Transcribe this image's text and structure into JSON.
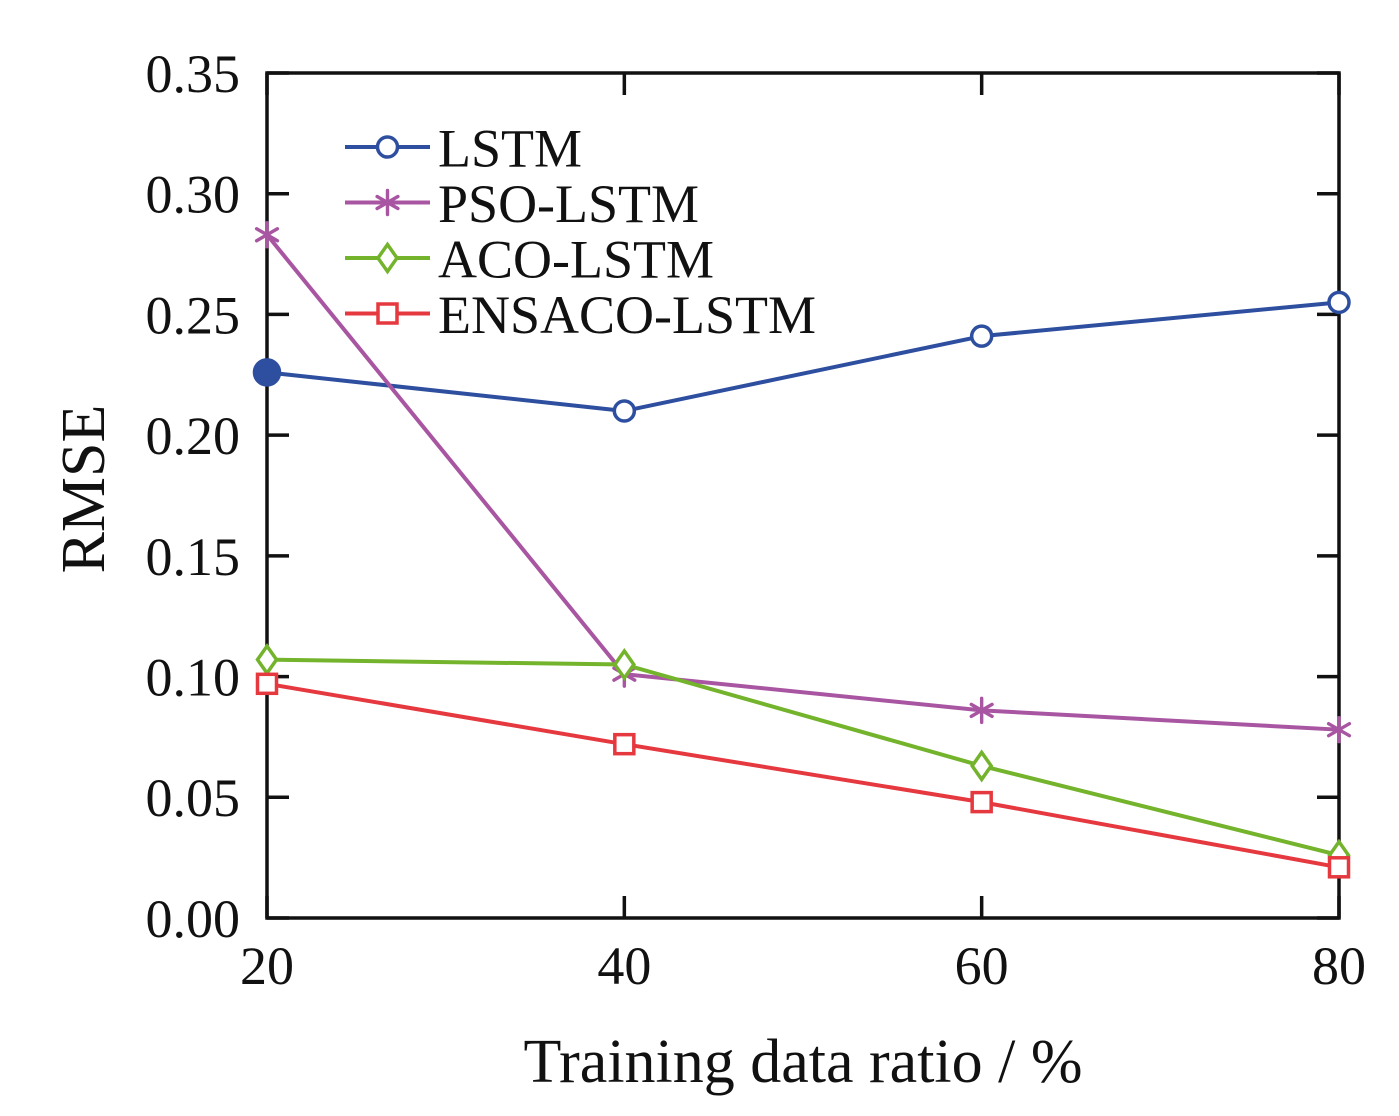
{
  "chart_data": {
    "type": "line",
    "x": [
      20,
      40,
      60,
      80
    ],
    "series": [
      {
        "name": "LSTM",
        "color": "#2e4f9f",
        "marker": "circle",
        "first_point_filled": true,
        "values": [
          0.226,
          0.21,
          0.241,
          0.255
        ]
      },
      {
        "name": "PSO-LSTM",
        "color": "#a855a2",
        "marker": "asterisk",
        "first_point_filled": false,
        "values": [
          0.283,
          0.101,
          0.086,
          0.078
        ]
      },
      {
        "name": "ACO-LSTM",
        "color": "#74b32c",
        "marker": "diamond",
        "first_point_filled": false,
        "values": [
          0.107,
          0.105,
          0.063,
          0.026
        ]
      },
      {
        "name": "ENSACO-LSTM",
        "color": "#e5383f",
        "marker": "square",
        "first_point_filled": false,
        "values": [
          0.097,
          0.072,
          0.048,
          0.021
        ]
      }
    ],
    "title": "",
    "xlabel": "Training data ratio / %",
    "ylabel": "RMSE",
    "xlim": [
      20,
      80
    ],
    "ylim": [
      0.0,
      0.35
    ],
    "x_tick_labels": [
      "20",
      "40",
      "60",
      "80"
    ],
    "y_tick_labels": [
      "0.00",
      "0.05",
      "0.10",
      "0.15",
      "0.20",
      "0.25",
      "0.30",
      "0.35"
    ],
    "grid": false,
    "legend_position": "top-left-inside",
    "axis_color": "#111111",
    "background_color": "#ffffff"
  }
}
